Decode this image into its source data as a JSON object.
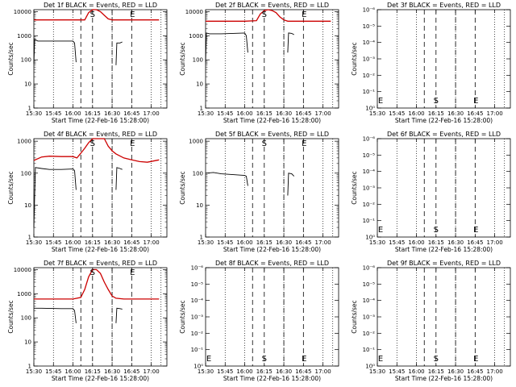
{
  "figure": {
    "colors": {
      "events": "#000000",
      "lld": "#cc0000",
      "background": "#ffffff"
    },
    "x_tick_labels": [
      "15:30",
      "15:45",
      "16:00",
      "16:15",
      "16:30",
      "16:45",
      "17:00"
    ],
    "xlabel": "Start Time (22-Feb-16 15:28:00)",
    "ylabel": "Counts/sec"
  },
  "chart_data": [
    {
      "type": "line",
      "title": "Det 1f BLACK = Events, RED = LLD",
      "yscale": "log",
      "ylim": [
        1,
        12000
      ],
      "yticks": [
        "1",
        "10",
        "100",
        "1000",
        "10000"
      ],
      "xlim": [
        15.5,
        17.2
      ],
      "markers": [
        {
          "label": "S",
          "x": 16.25
        },
        {
          "label": "E",
          "x": 16.75
        }
      ],
      "series": [
        {
          "role": "lld",
          "segments": [
            [
              [
                15.5,
                4500
              ],
              [
                16.0,
                4500
              ],
              [
                16.15,
                4500
              ],
              [
                16.2,
                9000
              ],
              [
                16.25,
                12000
              ],
              [
                16.3,
                12000
              ],
              [
                16.35,
                10000
              ],
              [
                16.4,
                7000
              ],
              [
                16.45,
                5000
              ],
              [
                16.5,
                4500
              ],
              [
                16.55,
                4500
              ],
              [
                17.1,
                4500
              ]
            ]
          ]
        },
        {
          "role": "events",
          "segments": [
            [
              [
                15.5,
                70
              ],
              [
                15.51,
                700
              ],
              [
                15.55,
                600
              ],
              [
                16.0,
                600
              ],
              [
                16.02,
                500
              ],
              [
                16.04,
                80
              ]
            ],
            [
              [
                16.55,
                60
              ],
              [
                16.56,
                500
              ],
              [
                16.6,
                500
              ],
              [
                16.63,
                550
              ]
            ]
          ]
        }
      ]
    },
    {
      "type": "line",
      "title": "Det 2f BLACK = Events, RED = LLD",
      "yscale": "log",
      "ylim": [
        1,
        12000
      ],
      "yticks": [
        "1",
        "10",
        "100",
        "1000",
        "10000"
      ],
      "xlim": [
        15.5,
        17.2
      ],
      "markers": [
        {
          "label": "S",
          "x": 16.25
        },
        {
          "label": "E",
          "x": 16.75
        }
      ],
      "series": [
        {
          "role": "lld",
          "segments": [
            [
              [
                15.5,
                4000
              ],
              [
                16.0,
                4000
              ],
              [
                16.15,
                4200
              ],
              [
                16.2,
                8000
              ],
              [
                16.25,
                11000
              ],
              [
                16.3,
                12000
              ],
              [
                16.35,
                11000
              ],
              [
                16.4,
                9000
              ],
              [
                16.45,
                6000
              ],
              [
                16.5,
                4500
              ],
              [
                16.55,
                4000
              ],
              [
                17.1,
                4000
              ]
            ]
          ]
        },
        {
          "role": "events",
          "segments": [
            [
              [
                15.5,
                80
              ],
              [
                15.51,
                1300
              ],
              [
                15.55,
                1200
              ],
              [
                15.7,
                1200
              ],
              [
                15.85,
                1250
              ],
              [
                16.0,
                1300
              ],
              [
                16.02,
                1000
              ],
              [
                16.04,
                200
              ]
            ],
            [
              [
                16.55,
                200
              ],
              [
                16.56,
                1300
              ],
              [
                16.6,
                1250
              ],
              [
                16.63,
                1100
              ]
            ]
          ]
        }
      ]
    },
    {
      "type": "line",
      "title": "Det 3f BLACK = Events, RED = LLD",
      "yscale": "log",
      "ylim": [
        1,
        1e-06
      ],
      "yticks": [
        "10⁰",
        "10⁻¹",
        "10⁻²",
        "10⁻³",
        "10⁻⁴",
        "10⁻⁵",
        "10⁻⁶"
      ],
      "xlim": [
        15.5,
        17.2
      ],
      "markers": [
        {
          "label": "S",
          "x": 16.25
        },
        {
          "label": "E",
          "x": 16.75
        }
      ],
      "series": []
    },
    {
      "type": "line",
      "title": "Det 4f BLACK = Events, RED = LLD",
      "yscale": "log",
      "ylim": [
        1,
        1200
      ],
      "yticks": [
        "1",
        "10",
        "100",
        "1000"
      ],
      "xlim": [
        15.5,
        17.2
      ],
      "markers": [
        {
          "label": "S",
          "x": 16.25
        },
        {
          "label": "E",
          "x": 16.75
        }
      ],
      "series": [
        {
          "role": "lld",
          "segments": [
            [
              [
                15.5,
                250
              ],
              [
                15.6,
                320
              ],
              [
                15.7,
                340
              ],
              [
                15.85,
                330
              ],
              [
                16.0,
                330
              ],
              [
                16.05,
                300
              ],
              [
                16.1,
                420
              ],
              [
                16.15,
                600
              ],
              [
                16.2,
                900
              ],
              [
                16.25,
                1200
              ],
              [
                16.3,
                1200
              ],
              [
                16.4,
                1200
              ],
              [
                16.45,
                700
              ],
              [
                16.5,
                500
              ],
              [
                16.55,
                400
              ],
              [
                16.65,
                300
              ],
              [
                16.75,
                260
              ],
              [
                16.85,
                230
              ],
              [
                16.95,
                220
              ],
              [
                17.1,
                260
              ]
            ]
          ]
        },
        {
          "role": "events",
          "segments": [
            [
              [
                15.5,
                2
              ],
              [
                15.52,
                150
              ],
              [
                15.6,
                140
              ],
              [
                15.7,
                130
              ],
              [
                15.85,
                130
              ],
              [
                16.0,
                135
              ],
              [
                16.02,
                120
              ],
              [
                16.04,
                30
              ]
            ],
            [
              [
                16.55,
                30
              ],
              [
                16.56,
                150
              ],
              [
                16.6,
                140
              ],
              [
                16.63,
                130
              ]
            ]
          ]
        }
      ]
    },
    {
      "type": "line",
      "title": "Det 5f BLACK = Events, RED = LLD",
      "yscale": "log",
      "ylim": [
        1,
        1200
      ],
      "yticks": [
        "1",
        "10",
        "100",
        "1000"
      ],
      "xlim": [
        15.5,
        17.2
      ],
      "markers": [
        {
          "label": "S",
          "x": 16.25
        },
        {
          "label": "E",
          "x": 16.75
        }
      ],
      "series": [
        {
          "role": "events",
          "segments": [
            [
              [
                15.5,
                100
              ],
              [
                15.6,
                105
              ],
              [
                15.7,
                95
              ],
              [
                15.85,
                90
              ],
              [
                16.0,
                85
              ],
              [
                16.02,
                80
              ],
              [
                16.04,
                40
              ]
            ],
            [
              [
                16.55,
                20
              ],
              [
                16.56,
                100
              ],
              [
                16.6,
                95
              ],
              [
                16.63,
                80
              ]
            ]
          ]
        }
      ]
    },
    {
      "type": "line",
      "title": "Det 6f BLACK = Events, RED = LLD",
      "yscale": "log",
      "ylim": [
        1,
        1e-06
      ],
      "yticks": [
        "10⁰",
        "10⁻¹",
        "10⁻²",
        "10⁻³",
        "10⁻⁴",
        "10⁻⁵",
        "10⁻⁶"
      ],
      "xlim": [
        15.5,
        17.2
      ],
      "markers": [
        {
          "label": "S",
          "x": 16.25
        },
        {
          "label": "E",
          "x": 16.75
        }
      ],
      "series": []
    },
    {
      "type": "line",
      "title": "Det 7f BLACK = Events, RED = LLD",
      "yscale": "log",
      "ylim": [
        1,
        12000
      ],
      "yticks": [
        "1",
        "10",
        "100",
        "1000",
        "10000"
      ],
      "xlim": [
        15.5,
        17.2
      ],
      "markers": [
        {
          "label": "S",
          "x": 16.25
        },
        {
          "label": "E",
          "x": 16.75
        }
      ],
      "series": [
        {
          "role": "lld",
          "segments": [
            [
              [
                15.5,
                600
              ],
              [
                16.0,
                600
              ],
              [
                16.1,
                700
              ],
              [
                16.15,
                1500
              ],
              [
                16.2,
                5000
              ],
              [
                16.25,
                10000
              ],
              [
                16.3,
                10000
              ],
              [
                16.35,
                7000
              ],
              [
                16.4,
                3000
              ],
              [
                16.45,
                1500
              ],
              [
                16.5,
                800
              ],
              [
                16.55,
                650
              ],
              [
                16.65,
                600
              ],
              [
                17.1,
                600
              ]
            ]
          ]
        },
        {
          "role": "events",
          "segments": [
            [
              [
                15.5,
                250
              ],
              [
                15.6,
                250
              ],
              [
                15.85,
                240
              ],
              [
                16.0,
                240
              ],
              [
                16.02,
                200
              ],
              [
                16.04,
                60
              ]
            ],
            [
              [
                16.55,
                60
              ],
              [
                16.56,
                250
              ],
              [
                16.6,
                240
              ],
              [
                16.63,
                230
              ]
            ]
          ]
        }
      ]
    },
    {
      "type": "line",
      "title": "Det 8f BLACK = Events, RED = LLD",
      "yscale": "log",
      "ylim": [
        1,
        1e-06
      ],
      "yticks": [
        "10⁰",
        "10⁻¹",
        "10⁻²",
        "10⁻³",
        "10⁻⁴",
        "10⁻⁵",
        "10⁻⁶"
      ],
      "xlim": [
        15.5,
        17.2
      ],
      "markers": [
        {
          "label": "S",
          "x": 16.25
        },
        {
          "label": "E",
          "x": 16.75
        }
      ],
      "series": []
    },
    {
      "type": "line",
      "title": "Det 9f BLACK = Events, RED = LLD",
      "yscale": "log",
      "ylim": [
        1,
        1e-06
      ],
      "yticks": [
        "10⁰",
        "10⁻¹",
        "10⁻²",
        "10⁻³",
        "10⁻⁴",
        "10⁻⁵",
        "10⁻⁶"
      ],
      "xlim": [
        15.5,
        17.2
      ],
      "markers": [
        {
          "label": "S",
          "x": 16.25
        },
        {
          "label": "E",
          "x": 16.75
        }
      ],
      "series": []
    }
  ]
}
